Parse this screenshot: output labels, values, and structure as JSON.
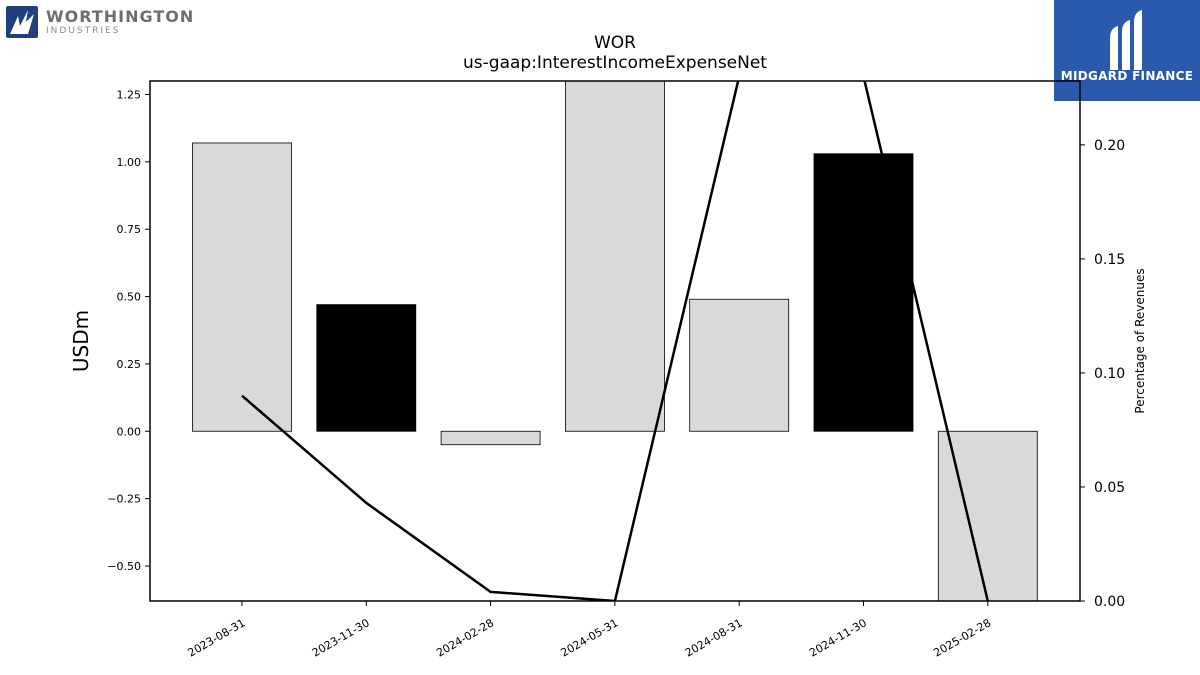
{
  "logos": {
    "left_name": "WORTHINGTON",
    "left_sub": "INDUSTRIES",
    "right_name": "MIDGARD FINANCE",
    "right_bg": "#2b5aad",
    "left_mark_color": "#1f3f7f"
  },
  "chart_data": {
    "type": "bar",
    "title": "WOR",
    "subtitle": "us-gaap:InterestIncomeExpenseNet",
    "ylabel": "USDm",
    "ylabel_right": "Percentage of Revenues",
    "categories": [
      "2023-08-31",
      "2023-11-30",
      "2024-02-28",
      "2024-05-31",
      "2024-08-31",
      "2024-11-30",
      "2025-02-28"
    ],
    "series": [
      {
        "kind": "bar",
        "axis": "left",
        "values": [
          1.07,
          0.47,
          -0.05,
          1.3,
          0.49,
          1.03,
          -0.63
        ],
        "colors": [
          "#d9d9d9",
          "#000000",
          "#d9d9d9",
          "#d9d9d9",
          "#d9d9d9",
          "#000000",
          "#d9d9d9"
        ]
      },
      {
        "kind": "line",
        "axis": "right",
        "color": "#000000",
        "values": [
          0.09,
          0.043,
          0.004,
          0.0,
          0.23,
          0.23,
          0.0
        ]
      }
    ],
    "ylim": [
      -0.63,
      1.3
    ],
    "ylim_right": [
      0.0,
      0.228
    ],
    "yticks": [
      -0.5,
      -0.25,
      0.0,
      0.25,
      0.5,
      0.75,
      1.0,
      1.25
    ],
    "ytick_labels": [
      "−0.50",
      "−0.25",
      "0.00",
      "0.25",
      "0.50",
      "0.75",
      "1.00",
      "1.25"
    ],
    "yticks_right": [
      0.0,
      0.05,
      0.1,
      0.15,
      0.2
    ],
    "ytick_labels_right": [
      "0.00",
      "0.05",
      "0.10",
      "0.15",
      "0.20"
    ],
    "grid": false,
    "legend": "none"
  }
}
